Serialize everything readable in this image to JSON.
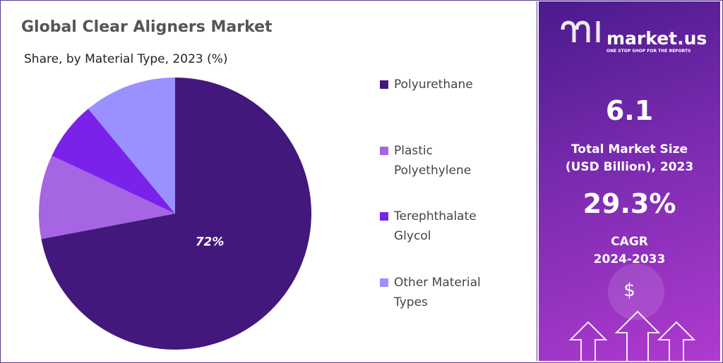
{
  "chart_data": {
    "type": "pie",
    "title": "Global Clear Aligners Market",
    "subtitle": "Share, by Material Type, 2023 (%)",
    "categories": [
      "Polyurethane",
      "Plastic Polyethylene",
      "Terephthalate Glycol",
      "Other Material Types"
    ],
    "values": [
      72,
      10,
      7,
      11
    ],
    "value_labels": [
      "72%",
      null,
      null,
      null
    ],
    "colors": [
      "#42187c",
      "#a665e2",
      "#7b22ea",
      "#9b90ff"
    ]
  },
  "panel": {
    "brand": "market.us",
    "tagline": "ONE STOP SHOP FOR THE REPORTS",
    "market_size": "6.1",
    "market_size_label": [
      "Total Market Size",
      "(USD Billion), 2023"
    ],
    "cagr": "29.3%",
    "cagr_label": [
      "CAGR",
      "2024-2033"
    ],
    "currency": "$"
  }
}
